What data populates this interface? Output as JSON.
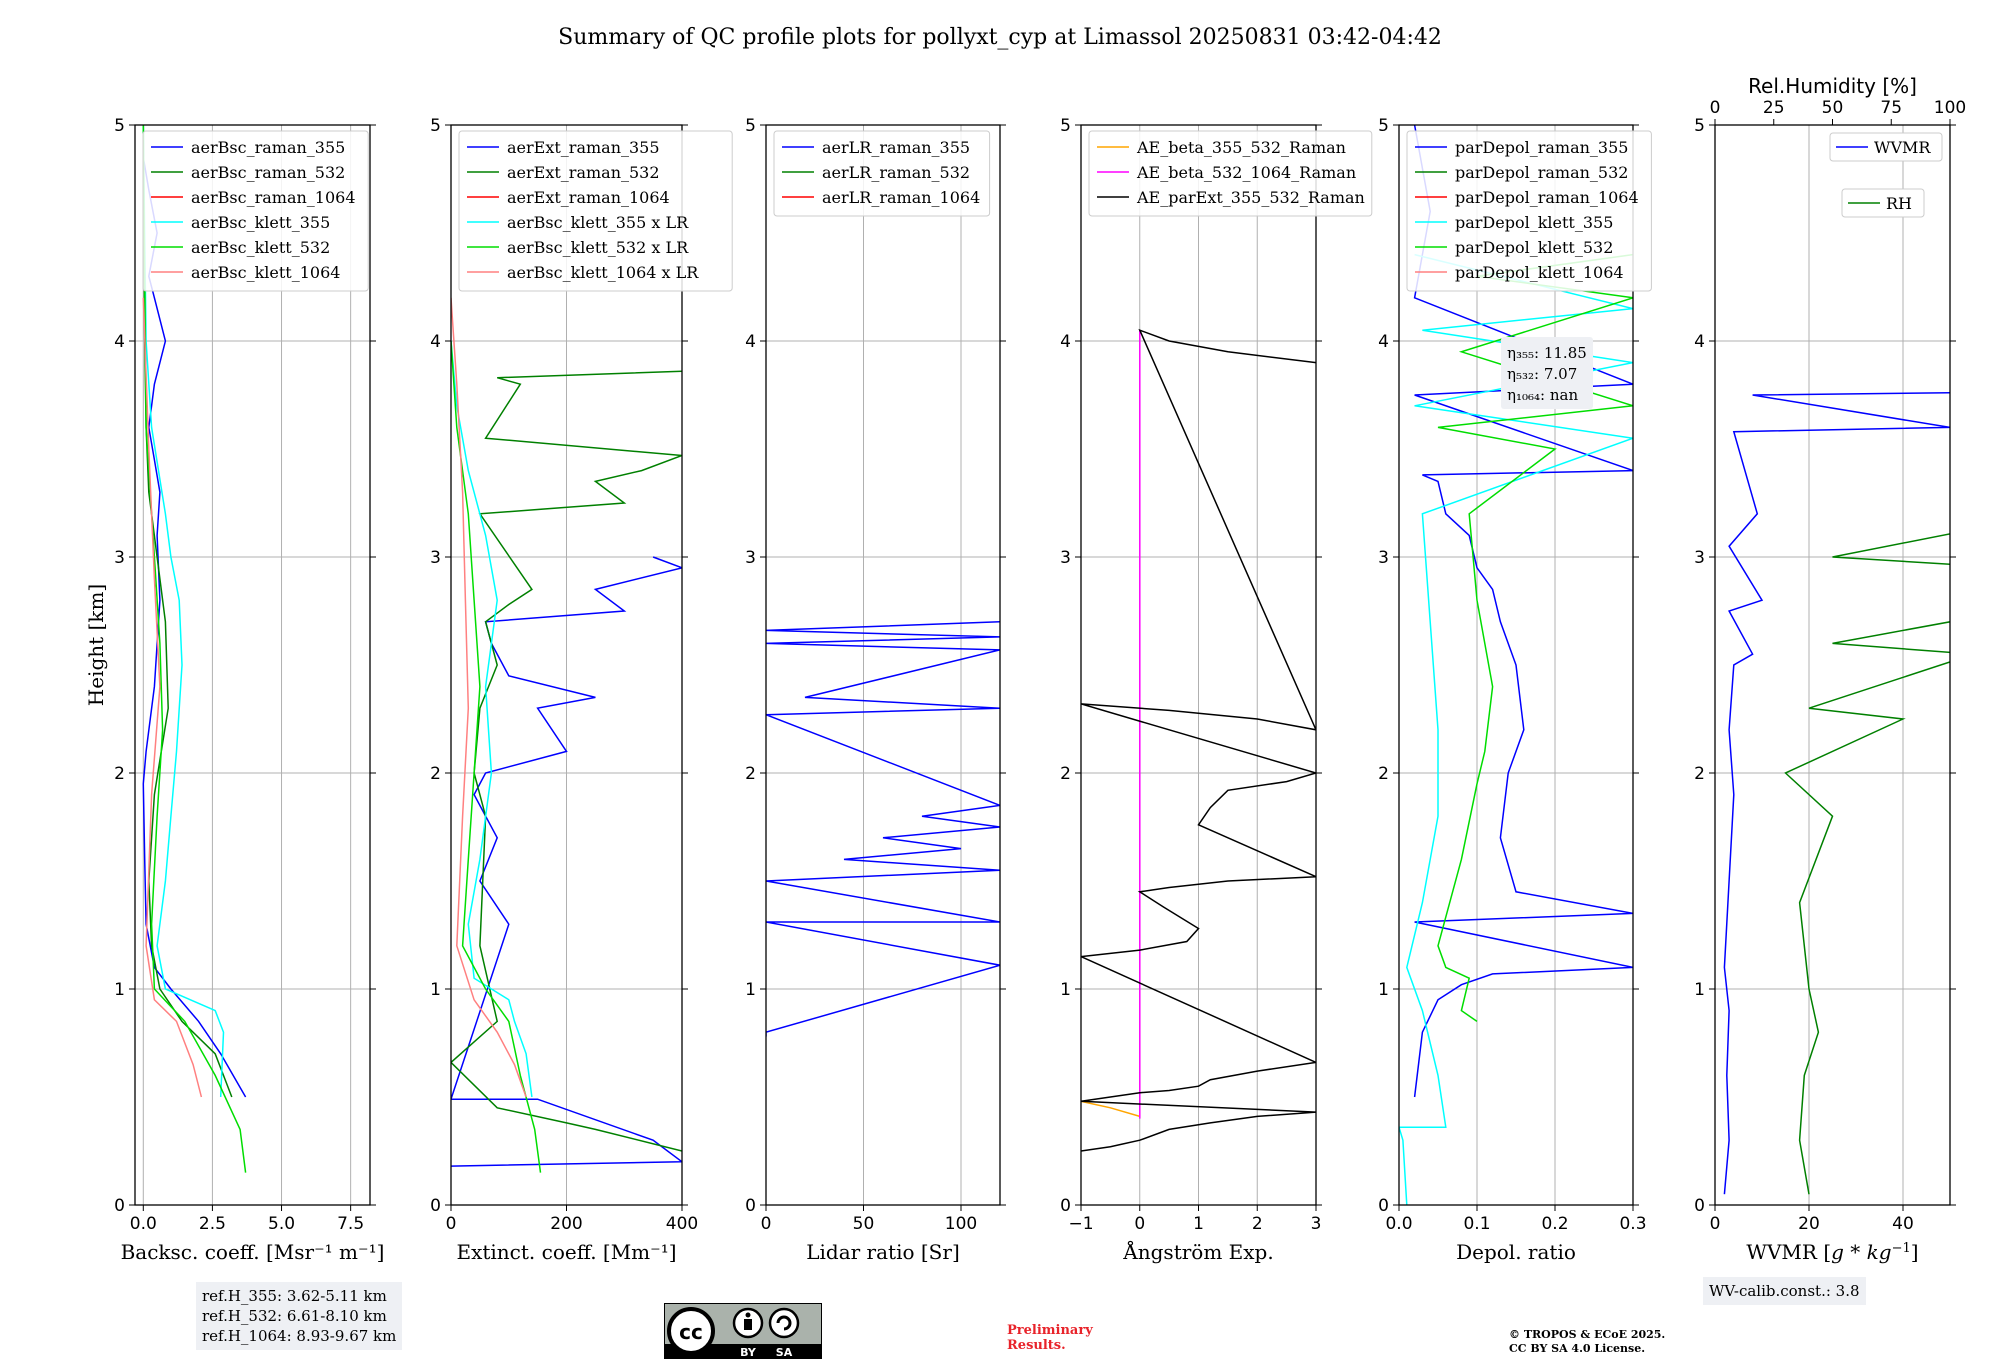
{
  "figure": {
    "title": "Summary of QC profile plots for pollyxt_cyp at Limassol 20250831 03:42-04:42",
    "ylabel": "Height [km]"
  },
  "chart_data": [
    {
      "type": "line",
      "id": "bsc",
      "xlabel": "Backsc. coeff. [Msr⁻¹ m⁻¹]",
      "xlim": [
        -0.3,
        8.2
      ],
      "ylim": [
        0,
        5
      ],
      "xticks": [
        0,
        2.5,
        5,
        7.5
      ],
      "xtick_labels": [
        "0.0",
        "2.5",
        "5.0",
        "7.5"
      ],
      "yticks": [
        0,
        1,
        2,
        3,
        4,
        5
      ],
      "grid": true,
      "legend_position": "top",
      "series": [
        {
          "name": "aerBsc_raman_355",
          "color": "#0000ff",
          "x": [
            3.7,
            2.8,
            2.0,
            1.0,
            0.4,
            0.1,
            0.05,
            0.0,
            0.1,
            0.4,
            0.6,
            0.5,
            0.6,
            0.4,
            0.2,
            0.4,
            0.8,
            0.4,
            0.2,
            0.5,
            0.2,
            0.0,
            0.0
          ],
          "y": [
            0.5,
            0.7,
            0.85,
            1.0,
            1.1,
            1.3,
            1.6,
            1.95,
            2.1,
            2.4,
            2.8,
            3.1,
            3.3,
            3.45,
            3.6,
            3.8,
            4.0,
            4.2,
            4.3,
            4.5,
            4.7,
            4.85,
            5.0
          ]
        },
        {
          "name": "aerBsc_raman_532",
          "color": "#008000",
          "x": [
            3.2,
            2.6,
            1.4,
            0.6,
            0.3,
            0.2,
            0.4,
            0.9,
            0.8,
            0.5,
            0.2,
            0.1,
            0.05,
            0.0
          ],
          "y": [
            0.5,
            0.7,
            0.85,
            1.0,
            1.2,
            1.5,
            1.9,
            2.3,
            2.7,
            3.0,
            3.3,
            3.6,
            4.0,
            5.0
          ]
        },
        {
          "name": "aerBsc_raman_1064",
          "color": "#ff0000",
          "x": [],
          "y": []
        },
        {
          "name": "aerBsc_klett_355",
          "color": "#00ffff",
          "x": [
            2.8,
            2.9,
            2.6,
            0.8,
            0.5,
            0.8,
            1.0,
            1.2,
            1.4,
            1.3,
            1.0,
            0.8,
            0.3,
            0.1,
            0.0
          ],
          "y": [
            0.5,
            0.8,
            0.9,
            1.0,
            1.2,
            1.5,
            1.8,
            2.1,
            2.5,
            2.8,
            3.0,
            3.2,
            3.6,
            4.0,
            5.0
          ]
        },
        {
          "name": "aerBsc_klett_532",
          "color": "#00dd00",
          "x": [
            3.7,
            3.5,
            2.6,
            1.5,
            0.4,
            0.3,
            0.5,
            0.7,
            0.6,
            0.4,
            0.1,
            0.0
          ],
          "y": [
            0.15,
            0.35,
            0.6,
            0.85,
            1.0,
            1.3,
            1.8,
            2.2,
            2.6,
            3.0,
            3.6,
            5.0
          ]
        },
        {
          "name": "aerBsc_klett_1064",
          "color": "#ff8080",
          "x": [
            2.1,
            1.8,
            1.2,
            0.4,
            0.1,
            0.3,
            0.6,
            0.4,
            0.2,
            0.0
          ],
          "y": [
            0.5,
            0.65,
            0.85,
            0.95,
            1.2,
            1.9,
            2.4,
            2.9,
            3.5,
            4.2
          ]
        }
      ]
    },
    {
      "type": "line",
      "id": "ext",
      "xlabel": "Extinct. coeff. [Mm⁻¹]",
      "xlim": [
        0,
        400
      ],
      "ylim": [
        0,
        5
      ],
      "xticks": [
        0,
        200,
        400
      ],
      "xtick_labels": [
        "0",
        "200",
        "400"
      ],
      "yticks": [
        0,
        1,
        2,
        3,
        4,
        5
      ],
      "grid": true,
      "legend_position": "top",
      "series": [
        {
          "name": "aerExt_raman_355",
          "color": "#0000ff",
          "x": [
            0,
            400,
            350,
            150,
            0,
            100,
            50,
            80,
            40,
            60,
            200,
            150,
            250,
            100,
            70,
            60,
            300,
            250,
            400,
            350
          ],
          "y": [
            0.18,
            0.2,
            0.3,
            0.49,
            0.49,
            1.3,
            1.5,
            1.7,
            1.9,
            2.0,
            2.1,
            2.3,
            2.35,
            2.45,
            2.6,
            2.7,
            2.75,
            2.85,
            2.95,
            3.0
          ]
        },
        {
          "name": "aerExt_raman_532",
          "color": "#008000",
          "x": [
            400,
            250,
            200,
            80,
            0,
            80,
            50,
            60,
            40,
            50,
            80,
            60,
            100,
            140,
            50,
            300,
            250,
            330,
            400,
            60,
            120,
            80,
            400
          ],
          "y": [
            0.25,
            0.35,
            0.38,
            0.45,
            0.66,
            0.85,
            1.2,
            1.8,
            2.0,
            2.3,
            2.5,
            2.7,
            2.78,
            2.85,
            3.2,
            3.25,
            3.35,
            3.4,
            3.47,
            3.55,
            3.8,
            3.83,
            3.86
          ]
        },
        {
          "name": "aerExt_raman_1064",
          "color": "#ff0000",
          "x": [],
          "y": []
        },
        {
          "name": "aerBsc_klett_355 x LR",
          "color": "#00ffff",
          "x": [
            140,
            130,
            110,
            100,
            40,
            30,
            50,
            70,
            60,
            80,
            60,
            30,
            10,
            0
          ],
          "y": [
            0.5,
            0.7,
            0.85,
            0.95,
            1.05,
            1.3,
            1.6,
            2.0,
            2.4,
            2.8,
            3.1,
            3.4,
            3.7,
            4.0
          ]
        },
        {
          "name": "aerBsc_klett_532 x LR",
          "color": "#00dd00",
          "x": [
            155,
            145,
            120,
            100,
            60,
            20,
            30,
            40,
            50,
            40,
            30,
            10,
            0
          ],
          "y": [
            0.15,
            0.35,
            0.6,
            0.85,
            1.0,
            1.2,
            1.6,
            2.0,
            2.4,
            2.8,
            3.2,
            3.6,
            4.0
          ]
        },
        {
          "name": "aerBsc_klett_1064 x LR",
          "color": "#ff8080",
          "x": [
            130,
            110,
            80,
            40,
            10,
            20,
            30,
            25,
            20,
            10,
            0
          ],
          "y": [
            0.5,
            0.65,
            0.8,
            0.95,
            1.2,
            1.8,
            2.3,
            2.8,
            3.3,
            3.8,
            4.2
          ]
        }
      ]
    },
    {
      "type": "line",
      "id": "lr",
      "xlabel": "Lidar ratio [Sr]",
      "xlim": [
        0,
        120
      ],
      "ylim": [
        0,
        5
      ],
      "xticks": [
        0,
        50,
        100
      ],
      "xtick_labels": [
        "0",
        "50",
        "100"
      ],
      "yticks": [
        0,
        1,
        2,
        3,
        4,
        5
      ],
      "grid": true,
      "legend_position": "top",
      "series": [
        {
          "name": "aerLR_raman_355",
          "color": "#0000ff",
          "x": [
            0,
            0,
            120,
            0,
            120,
            0,
            120,
            40,
            100,
            60,
            120,
            80,
            120,
            0,
            120,
            20,
            120,
            0,
            120,
            0,
            120
          ],
          "y": [
            0.78,
            0.8,
            1.11,
            1.31,
            1.31,
            1.5,
            1.55,
            1.6,
            1.65,
            1.7,
            1.75,
            1.8,
            1.85,
            2.27,
            2.3,
            2.35,
            2.57,
            2.6,
            2.63,
            2.66,
            2.7
          ]
        },
        {
          "name": "aerLR_raman_532",
          "color": "#008000",
          "x": [],
          "y": []
        },
        {
          "name": "aerLR_raman_1064",
          "color": "#ff0000",
          "x": [],
          "y": []
        }
      ]
    },
    {
      "type": "line",
      "id": "ae",
      "xlabel": "Ångström Exp.",
      "xlim": [
        -1,
        3
      ],
      "ylim": [
        0,
        5
      ],
      "xticks": [
        -1,
        0,
        1,
        2,
        3
      ],
      "xtick_labels": [
        "−1",
        "0",
        "1",
        "2",
        "3"
      ],
      "yticks": [
        0,
        1,
        2,
        3,
        4,
        5
      ],
      "grid": true,
      "legend_position": "top",
      "series": [
        {
          "name": "AE_beta_355_532_Raman",
          "color": "#ffa500",
          "x": [
            -1,
            -0.5,
            0
          ],
          "y": [
            0.48,
            0.45,
            0.41
          ]
        },
        {
          "name": "AE_beta_532_1064_Raman",
          "color": "#ff00ff",
          "x": [
            0,
            0
          ],
          "y": [
            0.4,
            4.05
          ]
        },
        {
          "name": "AE_parExt_355_532_Raman",
          "color": "#000000",
          "x": [
            -1,
            -0.5,
            0,
            0.5,
            1.2,
            2.0,
            3.0,
            -1,
            -0.5,
            0,
            0.5,
            1.0,
            1.2,
            2.0,
            3.0,
            -1,
            0,
            0.8,
            1.0,
            0.4,
            0,
            0.5,
            1.5,
            3.0,
            1.0,
            1.2,
            1.5,
            2.5,
            3.0,
            -1,
            0.5,
            2.0,
            3.0,
            0,
            0.5,
            1.5,
            3.0
          ],
          "y": [
            0.25,
            0.27,
            0.3,
            0.35,
            0.38,
            0.41,
            0.43,
            0.48,
            0.5,
            0.52,
            0.53,
            0.55,
            0.58,
            0.62,
            0.66,
            1.15,
            1.18,
            1.22,
            1.28,
            1.38,
            1.45,
            1.47,
            1.5,
            1.52,
            1.76,
            1.84,
            1.92,
            1.96,
            2.0,
            2.32,
            2.29,
            2.25,
            2.2,
            4.05,
            4.0,
            3.95,
            3.9
          ]
        }
      ]
    },
    {
      "type": "line",
      "id": "depol",
      "xlabel": "Depol. ratio",
      "xlim": [
        0,
        0.3
      ],
      "ylim": [
        0,
        5
      ],
      "xticks": [
        0,
        0.1,
        0.2,
        0.3
      ],
      "xtick_labels": [
        "0.0",
        "0.1",
        "0.2",
        "0.3"
      ],
      "yticks": [
        0,
        1,
        2,
        3,
        4,
        5
      ],
      "grid": true,
      "legend_position": "top",
      "annotation": [
        "η₃₅₅: 11.85",
        "η₅₃₂: 7.07",
        "η₁₀₆₄: nan"
      ],
      "series": [
        {
          "name": "parDepol_raman_355",
          "color": "#0000ff",
          "x": [
            0.02,
            0.03,
            0.05,
            0.08,
            0.12,
            0.3,
            0.02,
            0.3,
            0.15,
            0.13,
            0.14,
            0.16,
            0.15,
            0.13,
            0.12,
            0.1,
            0.09,
            0.06,
            0.05,
            0.03,
            0.3,
            0.02,
            0.3,
            0.02,
            0.04,
            0.02
          ],
          "y": [
            0.5,
            0.8,
            0.95,
            1.02,
            1.07,
            1.1,
            1.31,
            1.35,
            1.45,
            1.7,
            2.0,
            2.2,
            2.5,
            2.7,
            2.85,
            2.95,
            3.1,
            3.2,
            3.35,
            3.38,
            3.4,
            3.75,
            3.8,
            4.2,
            4.6,
            5.0
          ]
        },
        {
          "name": "parDepol_raman_532",
          "color": "#008000",
          "x": [],
          "y": []
        },
        {
          "name": "parDepol_raman_1064",
          "color": "#ff0000",
          "x": [],
          "y": []
        },
        {
          "name": "parDepol_klett_355",
          "color": "#00ffff",
          "x": [
            0.01,
            0.005,
            0.0,
            0.06,
            0.05,
            0.03,
            0.01,
            0.03,
            0.05,
            0.05,
            0.04,
            0.03,
            0.3,
            0.02,
            0.3,
            0.03,
            0.3,
            0.02
          ],
          "y": [
            0.0,
            0.3,
            0.36,
            0.36,
            0.6,
            0.9,
            1.1,
            1.4,
            1.8,
            2.2,
            2.7,
            3.2,
            3.55,
            3.7,
            3.9,
            4.05,
            4.15,
            4.4
          ]
        },
        {
          "name": "parDepol_klett_532",
          "color": "#00dd00",
          "x": [
            0.1,
            0.08,
            0.09,
            0.06,
            0.05,
            0.08,
            0.1,
            0.11,
            0.12,
            0.1,
            0.09,
            0.2,
            0.05,
            0.3,
            0.08,
            0.3,
            0.1,
            0.3
          ],
          "y": [
            0.85,
            0.9,
            1.05,
            1.1,
            1.2,
            1.6,
            1.95,
            2.1,
            2.4,
            2.8,
            3.2,
            3.5,
            3.6,
            3.7,
            3.95,
            4.2,
            4.3,
            4.4
          ]
        },
        {
          "name": "parDepol_klett_1064",
          "color": "#ff8080",
          "x": [],
          "y": []
        }
      ]
    },
    {
      "type": "line",
      "id": "wv",
      "xlabel": "WVMR [g * kg⁻¹]",
      "xlabel_parts": [
        "WVMR [",
        "g",
        " * ",
        "kg",
        "−1",
        "]"
      ],
      "top_xlabel": "Rel.Humidity [%]",
      "xlim": [
        0,
        50
      ],
      "ylim": [
        0,
        5
      ],
      "xticks": [
        0,
        20,
        40
      ],
      "xtick_labels": [
        "0",
        "20",
        "40"
      ],
      "top_xlim": [
        0,
        100
      ],
      "top_xticks": [
        0,
        25,
        50,
        75,
        100
      ],
      "top_xtick_labels": [
        "0",
        "25",
        "50",
        "75",
        "100"
      ],
      "yticks": [
        0,
        1,
        2,
        3,
        4,
        5
      ],
      "grid": true,
      "legend_position": "top-right",
      "series": [
        {
          "name": "WVMR",
          "color": "#0000ff",
          "x": [
            2,
            3,
            2.5,
            3,
            2,
            3,
            4,
            3,
            4,
            8,
            3,
            10,
            3,
            9,
            4,
            50,
            8,
            50
          ],
          "y": [
            0.05,
            0.3,
            0.6,
            0.9,
            1.1,
            1.5,
            1.9,
            2.2,
            2.5,
            2.55,
            2.75,
            2.8,
            3.05,
            3.2,
            3.58,
            3.6,
            3.75,
            3.76
          ]
        },
        {
          "name": "RH",
          "color": "#008000",
          "x": [
            20,
            18,
            19,
            22,
            20,
            18,
            25,
            15,
            40,
            20,
            55,
            25,
            100,
            25,
            60,
            100,
            50,
            100
          ],
          "y": [
            0.05,
            0.3,
            0.6,
            0.8,
            1.0,
            1.4,
            1.8,
            2.0,
            2.25,
            2.3,
            2.55,
            2.6,
            2.9,
            3.0,
            3.15,
            3.58,
            3.62,
            3.67
          ]
        }
      ]
    }
  ],
  "ref_heights": [
    "ref.H_355: 3.62-5.11 km",
    "ref.H_532: 6.61-8.10 km",
    "ref.H_1064: 8.93-9.67 km"
  ],
  "wv_calib": "WV-calib.const.: 3.8",
  "preliminary": [
    "Preliminary",
    "Results."
  ],
  "copyright": [
    "© TROPOS & ECoE 2025.",
    "CC BY SA 4.0 License."
  ],
  "license_badge": {
    "by": "BY",
    "sa": "SA",
    "cc": "cc"
  }
}
